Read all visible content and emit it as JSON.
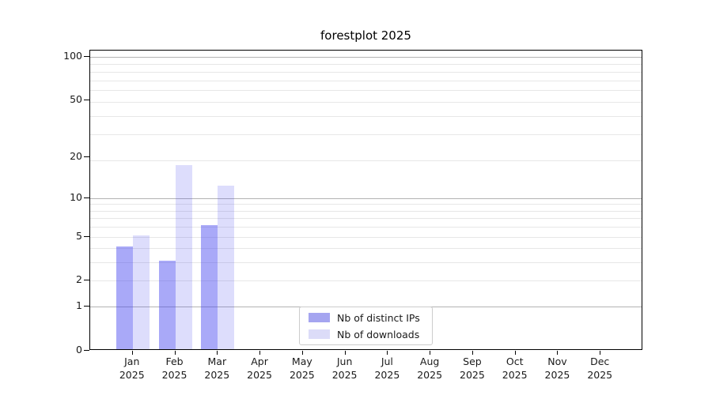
{
  "title": "forestplot 2025",
  "chart_data": {
    "type": "bar",
    "title": "forestplot 2025",
    "xlabel": "",
    "ylabel": "",
    "categories": [
      "Jan\n2025",
      "Feb\n2025",
      "Mar\n2025",
      "Apr\n2025",
      "May\n2025",
      "Jun\n2025",
      "Jul\n2025",
      "Aug\n2025",
      "Sep\n2025",
      "Oct\n2025",
      "Nov\n2025",
      "Dec\n2025"
    ],
    "series": [
      {
        "name": "Nb of distinct IPs",
        "color": "rgba(64,64,240,0.45)",
        "swatch": "#a5a5f0",
        "values": [
          4,
          3,
          6,
          null,
          null,
          null,
          null,
          null,
          null,
          null,
          null,
          null
        ]
      },
      {
        "name": "Nb of downloads",
        "color": "rgba(64,64,240,0.18)",
        "swatch": "#dcdcf8",
        "values": [
          5,
          17,
          12,
          null,
          null,
          null,
          null,
          null,
          null,
          null,
          null,
          null
        ]
      }
    ],
    "yscale": "log10(1+y)",
    "ylim": [
      0,
      110
    ],
    "yticks": [
      0,
      1,
      2,
      5,
      10,
      20,
      50,
      100
    ],
    "major_gridline_values": [
      1,
      10,
      100
    ],
    "minor_gridline_values": [
      2,
      3,
      4,
      5,
      6,
      7,
      8,
      9,
      19,
      29,
      39,
      49,
      59,
      69,
      79,
      89
    ],
    "grid": true,
    "legend_position": "lower center"
  },
  "colors": {
    "bar_dark": "rgba(64,64,240,0.45)",
    "bar_light": "rgba(64,64,240,0.18)",
    "major_grid": "#b3b3b3",
    "minor_grid": "#e7e7e7",
    "spine": "#000000",
    "text": "#1a1a1a"
  }
}
